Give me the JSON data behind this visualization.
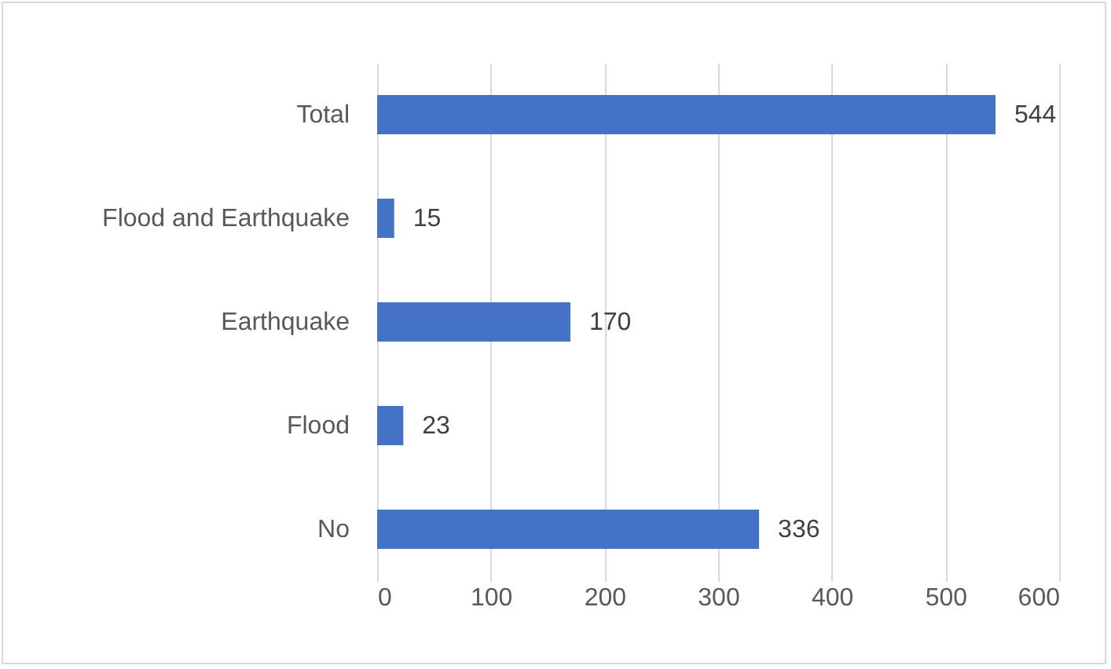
{
  "chart_data": {
    "type": "bar",
    "orientation": "horizontal",
    "categories": [
      "Total",
      "Flood and Earthquake",
      "Earthquake",
      "Flood",
      "No"
    ],
    "values": [
      544,
      15,
      170,
      23,
      336
    ],
    "color": "#4472c4",
    "xlim": [
      0,
      600
    ],
    "xticks": [
      0,
      100,
      200,
      300,
      400,
      500,
      600
    ],
    "grid": "x",
    "data_labels": true
  }
}
